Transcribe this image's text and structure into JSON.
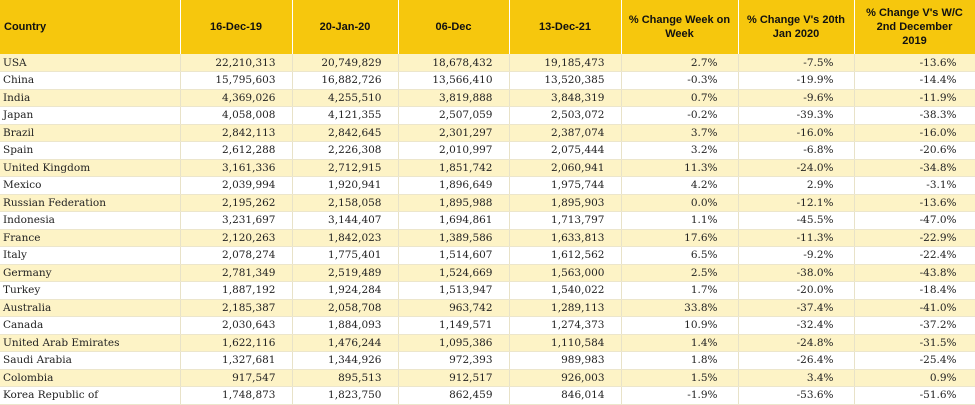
{
  "table": {
    "headers": [
      "Country",
      "16-Dec-19",
      "20-Jan-20",
      "06-Dec",
      "13-Dec-21",
      "% Change Week on\nWeek",
      "% Change V's 20th\nJan 2020",
      "% Change V's W/C\n2nd December\n2019"
    ],
    "rows": [
      [
        "USA",
        "22,210,313",
        "20,749,829",
        "18,678,432",
        "19,185,473",
        "2.7%",
        "-7.5%",
        "-13.6%"
      ],
      [
        "China",
        "15,795,603",
        "16,882,726",
        "13,566,410",
        "13,520,385",
        "-0.3%",
        "-19.9%",
        "-14.4%"
      ],
      [
        "India",
        "4,369,026",
        "4,255,510",
        "3,819,888",
        "3,848,319",
        "0.7%",
        "-9.6%",
        "-11.9%"
      ],
      [
        "Japan",
        "4,058,008",
        "4,121,355",
        "2,507,059",
        "2,503,072",
        "-0.2%",
        "-39.3%",
        "-38.3%"
      ],
      [
        "Brazil",
        "2,842,113",
        "2,842,645",
        "2,301,297",
        "2,387,074",
        "3.7%",
        "-16.0%",
        "-16.0%"
      ],
      [
        "Spain",
        "2,612,288",
        "2,226,308",
        "2,010,997",
        "2,075,444",
        "3.2%",
        "-6.8%",
        "-20.6%"
      ],
      [
        "United Kingdom",
        "3,161,336",
        "2,712,915",
        "1,851,742",
        "2,060,941",
        "11.3%",
        "-24.0%",
        "-34.8%"
      ],
      [
        "Mexico",
        "2,039,994",
        "1,920,941",
        "1,896,649",
        "1,975,744",
        "4.2%",
        "2.9%",
        "-3.1%"
      ],
      [
        "Russian Federation",
        "2,195,262",
        "2,158,058",
        "1,895,988",
        "1,895,903",
        "0.0%",
        "-12.1%",
        "-13.6%"
      ],
      [
        "Indonesia",
        "3,231,697",
        "3,144,407",
        "1,694,861",
        "1,713,797",
        "1.1%",
        "-45.5%",
        "-47.0%"
      ],
      [
        "France",
        "2,120,263",
        "1,842,023",
        "1,389,586",
        "1,633,813",
        "17.6%",
        "-11.3%",
        "-22.9%"
      ],
      [
        "Italy",
        "2,078,274",
        "1,775,401",
        "1,514,607",
        "1,612,562",
        "6.5%",
        "-9.2%",
        "-22.4%"
      ],
      [
        "Germany",
        "2,781,349",
        "2,519,489",
        "1,524,669",
        "1,563,000",
        "2.5%",
        "-38.0%",
        "-43.8%"
      ],
      [
        "Turkey",
        "1,887,192",
        "1,924,284",
        "1,513,947",
        "1,540,022",
        "1.7%",
        "-20.0%",
        "-18.4%"
      ],
      [
        "Australia",
        "2,185,387",
        "2,058,708",
        "963,742",
        "1,289,113",
        "33.8%",
        "-37.4%",
        "-41.0%"
      ],
      [
        "Canada",
        "2,030,643",
        "1,884,093",
        "1,149,571",
        "1,274,373",
        "10.9%",
        "-32.4%",
        "-37.2%"
      ],
      [
        "United Arab Emirates",
        "1,622,116",
        "1,476,244",
        "1,095,386",
        "1,110,584",
        "1.4%",
        "-24.8%",
        "-31.5%"
      ],
      [
        "Saudi Arabia",
        "1,327,681",
        "1,344,926",
        "972,393",
        "989,983",
        "1.8%",
        "-26.4%",
        "-25.4%"
      ],
      [
        "Colombia",
        "917,547",
        "895,513",
        "912,517",
        "926,003",
        "1.5%",
        "3.4%",
        "0.9%"
      ],
      [
        "Korea Republic of",
        "1,748,873",
        "1,823,750",
        "862,459",
        "846,014",
        "-1.9%",
        "-53.6%",
        "-51.6%"
      ]
    ]
  },
  "colors": {
    "header_background": "#f6c70d",
    "odd_row_background": "#fdf3c6",
    "even_row_background": "#ffffff"
  }
}
